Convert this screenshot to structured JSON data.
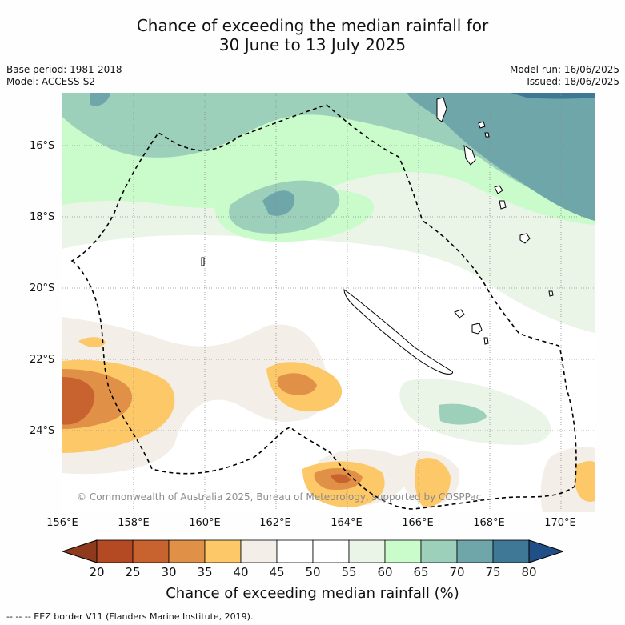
{
  "title_line1": "Chance of exceeding the median rainfall for",
  "title_line2": "30 June to 13 July 2025",
  "base_period": "Base period: 1981-2018",
  "model": "Model: ACCESS-S2",
  "model_run": "Model run: 16/06/2025",
  "issued": "Issued: 18/06/2025",
  "lat_labels": [
    "16°S",
    "18°S",
    "20°S",
    "22°S",
    "24°S"
  ],
  "lon_labels": [
    "156°E",
    "158°E",
    "160°E",
    "162°E",
    "164°E",
    "166°E",
    "168°E",
    "170°E"
  ],
  "colorbar": {
    "labels": [
      "20",
      "25",
      "30",
      "35",
      "40",
      "45",
      "50",
      "55",
      "60",
      "65",
      "70",
      "75",
      "80"
    ],
    "colors": [
      "#b34a24",
      "#c8622f",
      "#e09147",
      "#fdc867",
      "#f3eee8",
      "#ffffff",
      "#ffffff",
      "#eaf5e8",
      "#c9fbcb",
      "#9dd0bb",
      "#6fa6a9",
      "#3f7896"
    ],
    "under_color": "#8f3a1c",
    "over_color": "#1f4f86",
    "title": "Chance of exceeding median rainfall (%)"
  },
  "copyright": "© Commonwealth of Australia 2025, Bureau of Meteorology, supported by COSPPac",
  "footer": "--  --  -- EEZ border V11 (Flanders Marine Institute, 2019)."
}
